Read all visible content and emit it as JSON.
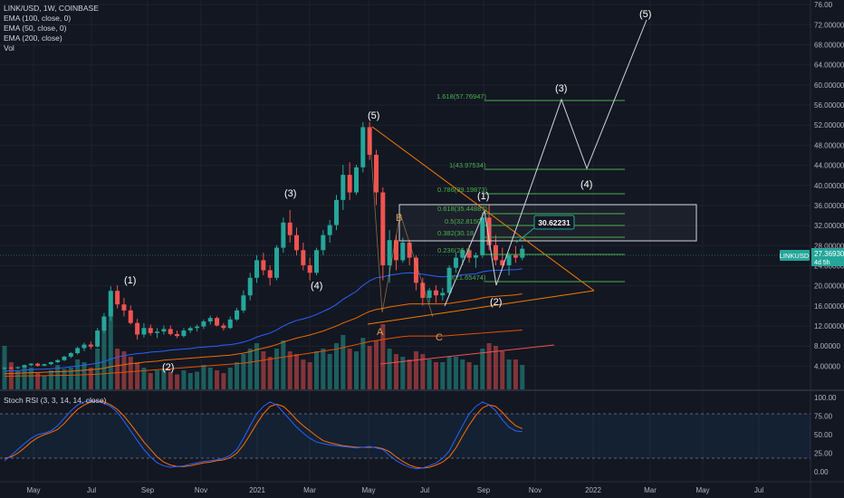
{
  "legend": {
    "title": "LINK/USD, 1W, COINBASE",
    "ema100": "EMA (100, close, 0)",
    "ema50": "EMA (50, close, 0)",
    "ema200": "EMA (200, close)",
    "vol": "Vol"
  },
  "rsi_legend": "Stoch RSI (3, 3, 14, 14, close)",
  "symbol_tag": "LINKUSD",
  "price_tag": "27.36930",
  "price_tag_sub": "4d 5h",
  "target_label": "30.62231",
  "colors": {
    "up": "#26a69a",
    "down": "#ef5350",
    "background": "#131722",
    "fib": "#4caf50",
    "triangle": "#f57c00"
  },
  "chart_data": {
    "type": "candlestick",
    "x_ticks": [
      "May",
      "Jul",
      "Sep",
      "Nov",
      "2021",
      "Mar",
      "May",
      "Jul",
      "Sep",
      "Nov",
      "2022",
      "Mar",
      "May",
      "Jul"
    ],
    "y_ticks": [
      "76.00",
      "72.00000",
      "68.00000",
      "64.00000",
      "60.00000",
      "56.00000",
      "52.00000",
      "48.00000",
      "44.00000",
      "40.00000",
      "36.00000",
      "32.00000",
      "28.00000",
      "24.00000",
      "20.00000",
      "16.00000",
      "12.00000",
      "8.00000",
      "4.00000"
    ],
    "ylim": [
      0,
      76
    ],
    "rsi_ticks": [
      "100.00",
      "75.00",
      "50.00",
      "25.00",
      "0.00"
    ],
    "candles": [
      [
        3.5,
        3.8,
        3.3,
        3.7
      ],
      [
        3.7,
        3.9,
        3.4,
        3.6
      ],
      [
        3.6,
        3.9,
        3.4,
        3.8
      ],
      [
        3.8,
        4.3,
        3.7,
        4.2
      ],
      [
        4.2,
        4.6,
        4.0,
        4.5
      ],
      [
        4.5,
        4.7,
        3.9,
        4.1
      ],
      [
        4.1,
        4.5,
        4.0,
        4.4
      ],
      [
        4.4,
        4.9,
        4.2,
        4.8
      ],
      [
        4.8,
        5.4,
        4.6,
        5.2
      ],
      [
        5.2,
        6.1,
        5.0,
        5.9
      ],
      [
        5.9,
        6.8,
        5.6,
        6.6
      ],
      [
        6.6,
        7.9,
        6.3,
        7.6
      ],
      [
        7.6,
        8.7,
        7.0,
        8.3
      ],
      [
        8.3,
        8.9,
        7.4,
        7.9
      ],
      [
        7.9,
        11.6,
        7.7,
        11.1
      ],
      [
        11.1,
        14.6,
        10.6,
        13.9
      ],
      [
        13.9,
        19.9,
        13.0,
        19.0
      ],
      [
        19.0,
        20.1,
        15.5,
        16.3
      ],
      [
        16.3,
        17.6,
        13.9,
        15.1
      ],
      [
        15.1,
        16.1,
        12.3,
        12.6
      ],
      [
        12.6,
        13.4,
        9.3,
        10.3
      ],
      [
        10.3,
        12.6,
        9.7,
        11.6
      ],
      [
        11.6,
        12.3,
        10.1,
        10.6
      ],
      [
        10.6,
        11.6,
        9.6,
        10.9
      ],
      [
        10.9,
        12.1,
        10.3,
        11.4
      ],
      [
        11.4,
        12.1,
        10.1,
        10.4
      ],
      [
        10.4,
        11.1,
        9.6,
        10.0
      ],
      [
        10.0,
        11.6,
        9.7,
        11.1
      ],
      [
        11.1,
        11.9,
        10.6,
        11.6
      ],
      [
        11.6,
        12.3,
        10.9,
        11.9
      ],
      [
        11.9,
        13.3,
        11.4,
        12.9
      ],
      [
        12.9,
        14.1,
        12.3,
        13.6
      ],
      [
        13.6,
        13.9,
        11.9,
        12.1
      ],
      [
        12.1,
        12.6,
        11.1,
        11.6
      ],
      [
        11.6,
        13.9,
        11.4,
        13.3
      ],
      [
        13.3,
        15.6,
        13.0,
        15.1
      ],
      [
        15.1,
        19.1,
        14.6,
        18.1
      ],
      [
        18.1,
        22.6,
        17.1,
        21.6
      ],
      [
        21.6,
        26.1,
        20.6,
        25.1
      ],
      [
        25.1,
        26.6,
        22.1,
        23.1
      ],
      [
        23.1,
        24.1,
        20.1,
        21.6
      ],
      [
        21.6,
        28.1,
        21.1,
        27.6
      ],
      [
        27.6,
        33.6,
        26.6,
        32.6
      ],
      [
        32.6,
        35.1,
        28.6,
        30.1
      ],
      [
        30.1,
        31.6,
        26.1,
        27.1
      ],
      [
        27.1,
        28.6,
        23.1,
        24.1
      ],
      [
        24.1,
        25.6,
        21.1,
        22.6
      ],
      [
        22.6,
        27.6,
        22.1,
        27.1
      ],
      [
        27.1,
        31.1,
        26.1,
        30.1
      ],
      [
        30.1,
        33.1,
        28.6,
        32.1
      ],
      [
        32.1,
        38.1,
        31.1,
        37.1
      ],
      [
        37.1,
        44.1,
        35.1,
        42.1
      ],
      [
        42.1,
        44.6,
        37.1,
        38.6
      ],
      [
        38.6,
        44.1,
        38.1,
        43.6
      ],
      [
        43.6,
        52.6,
        42.6,
        51.6
      ],
      [
        51.6,
        52.6,
        45.1,
        46.1
      ],
      [
        46.1,
        47.1,
        36.1,
        38.6
      ],
      [
        38.6,
        39.6,
        21.1,
        24.1
      ],
      [
        24.1,
        31.1,
        20.6,
        29.1
      ],
      [
        29.1,
        30.1,
        23.1,
        25.1
      ],
      [
        25.1,
        29.6,
        24.6,
        28.6
      ],
      [
        28.6,
        29.1,
        24.1,
        25.6
      ],
      [
        25.6,
        26.1,
        19.1,
        20.6
      ],
      [
        20.6,
        21.6,
        16.1,
        17.6
      ],
      [
        17.6,
        19.6,
        16.6,
        19.1
      ],
      [
        19.1,
        20.1,
        16.6,
        18.1
      ],
      [
        18.1,
        19.6,
        17.1,
        18.6
      ],
      [
        18.6,
        24.1,
        18.1,
        23.6
      ],
      [
        23.6,
        26.6,
        22.6,
        25.6
      ],
      [
        25.6,
        27.6,
        24.1,
        27.1
      ],
      [
        27.1,
        28.1,
        24.6,
        25.6
      ],
      [
        25.6,
        26.6,
        23.6,
        26.1
      ],
      [
        26.1,
        34.6,
        25.6,
        33.6
      ],
      [
        33.6,
        36.1,
        27.1,
        28.1
      ],
      [
        28.1,
        30.1,
        24.1,
        25.1
      ],
      [
        25.1,
        27.6,
        23.6,
        24.1
      ],
      [
        24.1,
        26.6,
        22.1,
        26.1
      ],
      [
        26.1,
        27.9,
        24.6,
        25.6
      ],
      [
        25.6,
        28.1,
        25.1,
        27.4
      ]
    ],
    "volumes": [
      32,
      20,
      14,
      18,
      16,
      12,
      10,
      14,
      18,
      15,
      16,
      22,
      20,
      16,
      30,
      44,
      60,
      30,
      28,
      24,
      20,
      16,
      12,
      14,
      15,
      13,
      11,
      14,
      12,
      13,
      18,
      16,
      14,
      12,
      16,
      20,
      26,
      30,
      34,
      28,
      24,
      30,
      36,
      28,
      26,
      22,
      20,
      28,
      30,
      26,
      34,
      40,
      30,
      28,
      38,
      32,
      36,
      48,
      30,
      26,
      24,
      22,
      28,
      26,
      22,
      20,
      20,
      24,
      24,
      22,
      20,
      18,
      30,
      34,
      32,
      28,
      22,
      22,
      18
    ],
    "ema50": [
      3.0,
      3.1,
      3.1,
      3.2,
      3.3,
      3.4,
      3.4,
      3.5,
      3.6,
      3.7,
      3.9,
      4.0,
      4.2,
      4.4,
      4.6,
      4.9,
      5.4,
      5.8,
      6.1,
      6.3,
      6.5,
      6.6,
      6.8,
      6.9,
      7.0,
      7.2,
      7.3,
      7.4,
      7.5,
      7.7,
      7.8,
      7.9,
      8.0,
      8.2,
      8.3,
      8.5,
      8.8,
      9.2,
      9.8,
      10.2,
      10.6,
      11.2,
      12.0,
      12.6,
      13.1,
      13.4,
      13.8,
      14.3,
      14.9,
      15.5,
      16.3,
      17.3,
      18.1,
      18.9,
      20.1,
      21.0,
      21.6,
      21.8,
      22.1,
      22.3,
      22.5,
      22.6,
      22.5,
      22.3,
      22.1,
      21.9,
      21.8,
      21.9,
      22.0,
      22.2,
      22.3,
      22.4,
      22.8,
      23.0,
      23.1,
      23.1,
      23.2,
      23.2,
      23.4
    ],
    "ema100": [
      2.5,
      2.55,
      2.6,
      2.65,
      2.7,
      2.75,
      2.8,
      2.85,
      2.9,
      2.95,
      3.0,
      3.1,
      3.2,
      3.3,
      3.4,
      3.6,
      3.9,
      4.1,
      4.3,
      4.5,
      4.6,
      4.8,
      4.9,
      5.0,
      5.2,
      5.3,
      5.4,
      5.5,
      5.6,
      5.7,
      5.8,
      5.9,
      6.0,
      6.1,
      6.2,
      6.4,
      6.6,
      6.9,
      7.3,
      7.6,
      7.9,
      8.3,
      8.8,
      9.2,
      9.6,
      9.9,
      10.2,
      10.6,
      11.0,
      11.5,
      12.0,
      12.6,
      13.1,
      13.6,
      14.3,
      14.9,
      15.3,
      15.5,
      15.8,
      16.0,
      16.2,
      16.4,
      16.4,
      16.4,
      16.4,
      16.4,
      16.4,
      16.5,
      16.7,
      16.9,
      17.1,
      17.3,
      17.6,
      17.8,
      17.9,
      18.0,
      18.1,
      18.2,
      18.4
    ],
    "ema200": [
      2.0,
      2.02,
      2.04,
      2.06,
      2.08,
      2.1,
      2.12,
      2.14,
      2.16,
      2.18,
      2.2,
      2.25,
      2.3,
      2.35,
      2.4,
      2.5,
      2.6,
      2.7,
      2.8,
      2.9,
      3.0,
      3.1,
      3.2,
      3.3,
      3.4,
      3.5,
      3.6,
      3.7,
      3.8,
      3.9,
      4.0,
      4.1,
      4.2,
      4.3,
      4.4,
      4.5,
      4.6,
      4.8,
      5.0,
      5.2,
      5.4,
      5.6,
      5.8,
      6.0,
      6.2,
      6.4,
      6.6,
      6.8,
      7.0,
      7.2,
      7.4,
      7.7,
      8.0,
      8.3,
      8.6,
      8.9,
      9.1,
      9.3,
      9.5,
      9.7,
      9.9,
      10.0,
      10.0,
      10.0,
      10.0,
      10.0,
      10.0,
      10.1,
      10.2,
      10.3,
      10.4,
      10.5,
      10.6,
      10.7,
      10.8,
      10.9,
      11.0,
      11.1,
      11.2
    ],
    "stoch_k": [
      15,
      22,
      30,
      38,
      45,
      50,
      52,
      55,
      62,
      72,
      82,
      90,
      94,
      96,
      95,
      92,
      88,
      80,
      68,
      55,
      42,
      30,
      20,
      12,
      8,
      6,
      7,
      8,
      10,
      12,
      14,
      15,
      16,
      18,
      22,
      30,
      45,
      62,
      78,
      88,
      94,
      90,
      80,
      70,
      60,
      52,
      45,
      40,
      38,
      36,
      35,
      34,
      33,
      32,
      33,
      34,
      32,
      30,
      22,
      15,
      10,
      6,
      4,
      5,
      8,
      12,
      18,
      28,
      45,
      62,
      78,
      88,
      94,
      90,
      82,
      70,
      60,
      55,
      54
    ],
    "stoch_d": [
      18,
      20,
      25,
      32,
      40,
      46,
      50,
      53,
      57,
      65,
      75,
      84,
      90,
      94,
      95,
      94,
      90,
      84,
      75,
      64,
      52,
      40,
      30,
      20,
      13,
      9,
      7,
      7,
      8,
      10,
      12,
      13,
      15,
      16,
      19,
      25,
      36,
      50,
      65,
      78,
      88,
      91,
      88,
      80,
      70,
      62,
      55,
      48,
      42,
      39,
      37,
      35,
      34,
      33,
      33,
      33,
      33,
      31,
      27,
      20,
      14,
      9,
      6,
      5,
      6,
      9,
      13,
      20,
      32,
      48,
      63,
      76,
      86,
      90,
      88,
      80,
      70,
      62,
      58
    ]
  }
}
